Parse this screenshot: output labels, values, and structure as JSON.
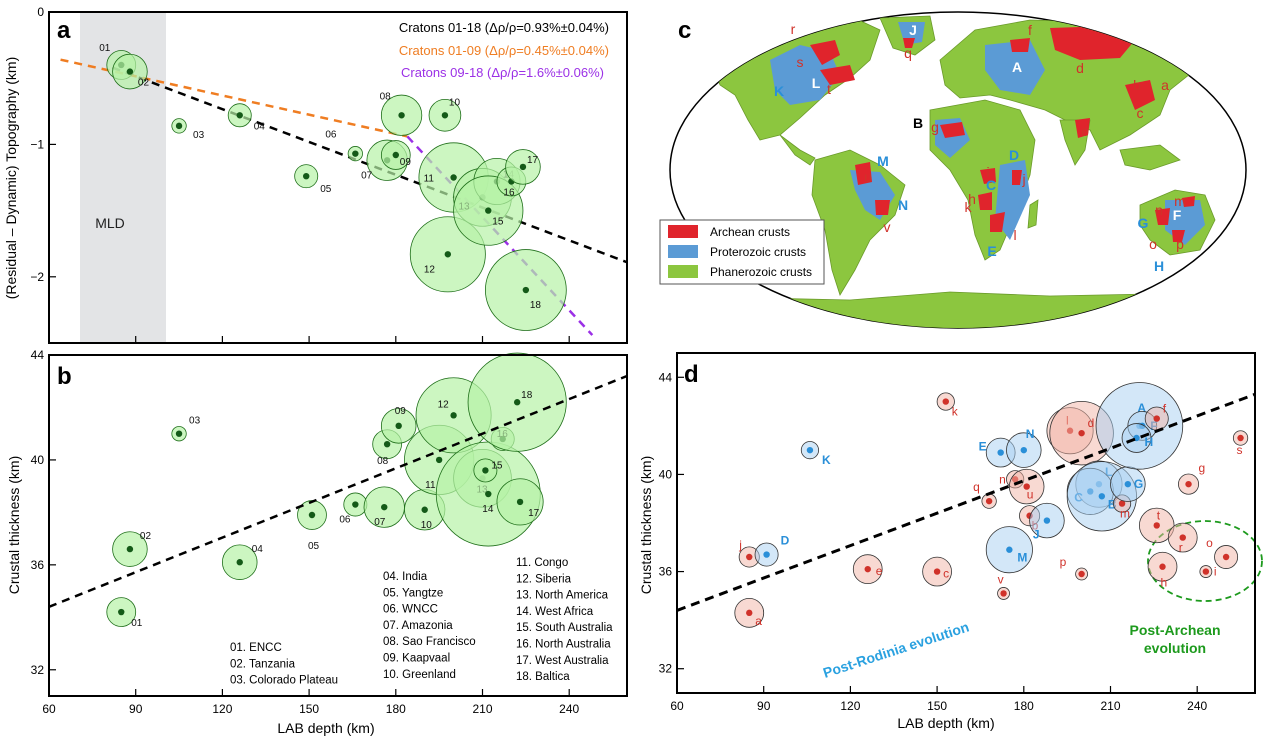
{
  "figure": {
    "panel_labels": [
      "a",
      "b",
      "c",
      "d"
    ]
  },
  "colors": {
    "circle_fill": "#b6f2a6",
    "circle_stroke": "#1f6f1a",
    "dot": "#145a18",
    "mld": "#e3e4e6",
    "fit_all": "#000000",
    "fit_0109": "#ef7d22",
    "fit_0918": "#9b30e6",
    "archean": "#e0242c",
    "proterozoic": "#5b9bd5",
    "phanerozoic": "#8cc63f",
    "ocean": "#ffffff",
    "blue_label": "#2a8fd8",
    "red_label": "#d0322a",
    "post_rodinia": "#2aa1e0",
    "post_archean": "#1d9a1d"
  },
  "chart_data": [
    {
      "panel": "a",
      "type": "scatter",
      "xlabel": "LAB depth (km)",
      "ylabel": "(Residual – Dynamic) Topography (km)",
      "xlim": [
        60,
        260
      ],
      "ylim": [
        -2.5,
        0
      ],
      "x_ticks": [
        60,
        90,
        120,
        150,
        180,
        210,
        240
      ],
      "y_ticks": [
        0,
        -1,
        -2
      ],
      "y_tick_labels": [
        "0",
        "−1",
        "−2"
      ],
      "shaded_region": {
        "label": "MLD",
        "x_range": [
          71,
          100
        ]
      },
      "points": [
        {
          "id": "01",
          "x": 85,
          "y": -0.4,
          "r": 5
        },
        {
          "id": "02",
          "x": 88,
          "y": -0.45,
          "r": 6
        },
        {
          "id": "03",
          "x": 105,
          "y": -0.86,
          "r": 2.5
        },
        {
          "id": "04",
          "x": 126,
          "y": -0.78,
          "r": 4
        },
        {
          "id": "05",
          "x": 149,
          "y": -1.24,
          "r": 4
        },
        {
          "id": "06",
          "x": 166,
          "y": -1.07,
          "r": 2.5
        },
        {
          "id": "07",
          "x": 177,
          "y": -1.12,
          "r": 7
        },
        {
          "id": "08",
          "x": 182,
          "y": -0.78,
          "r": 7
        },
        {
          "id": "09",
          "x": 180,
          "y": -1.08,
          "r": 5
        },
        {
          "id": "10",
          "x": 197,
          "y": -0.78,
          "r": 5.5
        },
        {
          "id": "11",
          "x": 200,
          "y": -1.25,
          "r": 12
        },
        {
          "id": "12",
          "x": 198,
          "y": -1.83,
          "r": 13
        },
        {
          "id": "13",
          "x": 210,
          "y": -1.4,
          "r": 10
        },
        {
          "id": "14",
          "x": 215,
          "y": -1.28,
          "r": 8
        },
        {
          "id": "15",
          "x": 212,
          "y": -1.5,
          "r": 12
        },
        {
          "id": "16",
          "x": 220,
          "y": -1.28,
          "r": 5
        },
        {
          "id": "17",
          "x": 224,
          "y": -1.17,
          "r": 6
        },
        {
          "id": "18",
          "x": 225,
          "y": -2.1,
          "r": 14
        }
      ],
      "fits": [
        {
          "name": "Cratons 01-18",
          "label": "Cratons 01-18 (Δρ/ρ=0.93%±0.04%)",
          "x": [
            82,
            260
          ],
          "y": [
            -0.42,
            -1.89
          ]
        },
        {
          "name": "Cratons 01-09",
          "label": "Cratons 01-09 (Δρ/ρ=0.45%±0.04%)",
          "x": [
            64,
            184
          ],
          "y": [
            -0.36,
            -0.94
          ]
        },
        {
          "name": "Cratons 09-18",
          "label": "Cratons 09-18 (Δρ/ρ=1.6%±0.06%)",
          "x": [
            184,
            248
          ],
          "y": [
            -0.94,
            -2.44
          ]
        }
      ]
    },
    {
      "panel": "b",
      "type": "scatter",
      "xlabel": "LAB depth (km)",
      "ylabel": "Crustal thickness (km)",
      "xlim": [
        60,
        260
      ],
      "ylim": [
        31,
        44
      ],
      "x_ticks": [
        60,
        90,
        120,
        150,
        180,
        210,
        240
      ],
      "x_tick_labels": [
        "60",
        "90",
        "120",
        "150",
        "180",
        "210",
        "240"
      ],
      "y_ticks": [
        32,
        36,
        40,
        44
      ],
      "points": [
        {
          "id": "01",
          "x": 85,
          "y": 34.2,
          "r": 5
        },
        {
          "id": "02",
          "x": 88,
          "y": 36.6,
          "r": 6
        },
        {
          "id": "03",
          "x": 105,
          "y": 41.0,
          "r": 2.5
        },
        {
          "id": "04",
          "x": 126,
          "y": 36.1,
          "r": 6
        },
        {
          "id": "05",
          "x": 151,
          "y": 37.9,
          "r": 5
        },
        {
          "id": "06",
          "x": 166,
          "y": 38.3,
          "r": 4
        },
        {
          "id": "07",
          "x": 176,
          "y": 38.2,
          "r": 7
        },
        {
          "id": "08",
          "x": 177,
          "y": 40.6,
          "r": 5
        },
        {
          "id": "09",
          "x": 181,
          "y": 41.3,
          "r": 6
        },
        {
          "id": "10",
          "x": 190,
          "y": 38.1,
          "r": 7
        },
        {
          "id": "11",
          "x": 195,
          "y": 40.0,
          "r": 12
        },
        {
          "id": "12",
          "x": 200,
          "y": 41.7,
          "r": 13
        },
        {
          "id": "13",
          "x": 210,
          "y": 39.3,
          "r": 10
        },
        {
          "id": "14",
          "x": 212,
          "y": 38.7,
          "r": 18
        },
        {
          "id": "15",
          "x": 211,
          "y": 39.6,
          "r": 4
        },
        {
          "id": "16",
          "x": 217,
          "y": 40.8,
          "r": 4
        },
        {
          "id": "17",
          "x": 223,
          "y": 38.4,
          "r": 8
        },
        {
          "id": "18",
          "x": 222,
          "y": 42.2,
          "r": 17
        }
      ],
      "fit": {
        "x": [
          60,
          260
        ],
        "y": [
          34.4,
          43.2
        ]
      },
      "legend_groups": [
        [
          "01. ENCC",
          "02. Tanzania",
          "03. Colorado Plateau"
        ],
        [
          "04. India",
          "05. Yangtze",
          "06. WNCC",
          "07. Amazonia",
          "08. Sao Francisco",
          "09. Kaapvaal",
          "10. Greenland"
        ],
        [
          "11. Congo",
          "12. Siberia",
          "13. North America",
          "14. West Africa",
          "15. South Australia",
          "16. North Australia",
          "17. West Australia",
          "18. Baltica"
        ]
      ]
    },
    {
      "panel": "d",
      "type": "scatter",
      "xlabel": "LAB depth (km)",
      "ylabel": "Crustal thickness (km)",
      "xlim": [
        60,
        260
      ],
      "ylim": [
        31,
        45
      ],
      "x_ticks": [
        60,
        90,
        120,
        150,
        180,
        210,
        240
      ],
      "y_ticks": [
        32,
        36,
        40,
        44
      ],
      "fit": {
        "x": [
          60,
          260
        ],
        "y": [
          34.4,
          43.3
        ]
      },
      "points": [
        {
          "id": "a",
          "x": 85,
          "y": 34.3,
          "r": 5,
          "group": "archean"
        },
        {
          "id": "j",
          "x": 85,
          "y": 36.6,
          "r": 3.5,
          "group": "archean"
        },
        {
          "id": "D",
          "x": 91,
          "y": 36.7,
          "r": 4,
          "group": "proterozoic"
        },
        {
          "id": "K",
          "x": 106,
          "y": 41.0,
          "r": 3,
          "group": "proterozoic"
        },
        {
          "id": "e",
          "x": 126,
          "y": 36.1,
          "r": 5,
          "group": "archean"
        },
        {
          "id": "c",
          "x": 150,
          "y": 36.0,
          "r": 5,
          "group": "archean"
        },
        {
          "id": "k",
          "x": 153,
          "y": 43.0,
          "r": 3,
          "group": "archean"
        },
        {
          "id": "q",
          "x": 168,
          "y": 38.9,
          "r": 2.5,
          "group": "archean"
        },
        {
          "id": "v",
          "x": 173,
          "y": 35.1,
          "r": 2,
          "group": "archean"
        },
        {
          "id": "M",
          "x": 175,
          "y": 36.9,
          "r": 8,
          "group": "proterozoic"
        },
        {
          "id": "E",
          "x": 172,
          "y": 40.9,
          "r": 5,
          "group": "proterozoic"
        },
        {
          "id": "N",
          "x": 180,
          "y": 41.0,
          "r": 6,
          "group": "proterozoic"
        },
        {
          "id": "n",
          "x": 177,
          "y": 39.8,
          "r": 3,
          "group": "archean"
        },
        {
          "id": "u",
          "x": 181,
          "y": 39.5,
          "r": 6,
          "group": "archean"
        },
        {
          "id": "b",
          "x": 182,
          "y": 38.3,
          "r": 3.5,
          "group": "archean"
        },
        {
          "id": "J",
          "x": 188,
          "y": 38.1,
          "r": 6,
          "group": "proterozoic"
        },
        {
          "id": "l",
          "x": 196,
          "y": 41.8,
          "r": 8,
          "group": "archean"
        },
        {
          "id": "d",
          "x": 200,
          "y": 41.7,
          "r": 11,
          "group": "archean"
        },
        {
          "id": "L",
          "x": 206,
          "y": 39.6,
          "r": 8,
          "group": "proterozoic"
        },
        {
          "id": "C",
          "x": 203,
          "y": 39.3,
          "r": 8,
          "group": "proterozoic"
        },
        {
          "id": "B",
          "x": 207,
          "y": 39.1,
          "r": 12,
          "group": "proterozoic"
        },
        {
          "id": "m",
          "x": 214,
          "y": 38.8,
          "r": 3,
          "group": "archean"
        },
        {
          "id": "G",
          "x": 216,
          "y": 39.6,
          "r": 6,
          "group": "proterozoic"
        },
        {
          "id": "A",
          "x": 220,
          "y": 42.0,
          "r": 15,
          "group": "proterozoic"
        },
        {
          "id": "F",
          "x": 221,
          "y": 42.0,
          "r": 5,
          "group": "proterozoic"
        },
        {
          "id": "H",
          "x": 219,
          "y": 41.5,
          "r": 5,
          "group": "proterozoic"
        },
        {
          "id": "f",
          "x": 226,
          "y": 42.3,
          "r": 4,
          "group": "archean"
        },
        {
          "id": "t",
          "x": 226,
          "y": 37.9,
          "r": 6,
          "group": "archean"
        },
        {
          "id": "g",
          "x": 237,
          "y": 39.6,
          "r": 3.5,
          "group": "archean"
        },
        {
          "id": "p",
          "x": 200,
          "y": 35.9,
          "r": 2,
          "group": "archean"
        },
        {
          "id": "r",
          "x": 235,
          "y": 37.4,
          "r": 5,
          "group": "archean"
        },
        {
          "id": "h",
          "x": 228,
          "y": 36.2,
          "r": 5,
          "group": "archean"
        },
        {
          "id": "i",
          "x": 243,
          "y": 36.0,
          "r": 2,
          "group": "archean"
        },
        {
          "id": "o",
          "x": 250,
          "y": 36.6,
          "r": 4,
          "group": "archean"
        },
        {
          "id": "s",
          "x": 255,
          "y": 41.5,
          "r": 2.5,
          "group": "archean"
        }
      ],
      "annotations": {
        "post_rodinia": "Post-Rodinia evolution",
        "post_archean_1": "Post-Archean",
        "post_archean_2": "evolution"
      }
    }
  ],
  "map": {
    "legend": [
      "Archean crusts",
      "Proterozoic crusts",
      "Phanerozoic crusts"
    ],
    "labels": [
      {
        "t": "r",
        "c": "red"
      },
      {
        "t": "s",
        "c": "red"
      },
      {
        "t": "L",
        "c": "white"
      },
      {
        "t": "t",
        "c": "red"
      },
      {
        "t": "K",
        "c": "blue"
      },
      {
        "t": "J",
        "c": "white"
      },
      {
        "t": "q",
        "c": "red"
      },
      {
        "t": "f",
        "c": "red"
      },
      {
        "t": "A",
        "c": "white"
      },
      {
        "t": "d",
        "c": "red"
      },
      {
        "t": "b",
        "c": "red"
      },
      {
        "t": "a",
        "c": "red"
      },
      {
        "t": "c",
        "c": "red"
      },
      {
        "t": "e",
        "c": "red"
      },
      {
        "t": "B",
        "c": "black"
      },
      {
        "t": "g",
        "c": "red"
      },
      {
        "t": "M",
        "c": "blue"
      },
      {
        "t": "u",
        "c": "red"
      },
      {
        "t": "N",
        "c": "blue"
      },
      {
        "t": "v",
        "c": "red"
      },
      {
        "t": "D",
        "c": "blue"
      },
      {
        "t": "C",
        "c": "blue"
      },
      {
        "t": "h",
        "c": "red"
      },
      {
        "t": "i",
        "c": "red"
      },
      {
        "t": "j",
        "c": "red"
      },
      {
        "t": "k",
        "c": "red"
      },
      {
        "t": "l",
        "c": "red"
      },
      {
        "t": "E",
        "c": "blue"
      },
      {
        "t": "m",
        "c": "red"
      },
      {
        "t": "n",
        "c": "red"
      },
      {
        "t": "F",
        "c": "white"
      },
      {
        "t": "G",
        "c": "blue"
      },
      {
        "t": "o",
        "c": "red"
      },
      {
        "t": "p",
        "c": "red"
      },
      {
        "t": "H",
        "c": "blue"
      }
    ]
  }
}
